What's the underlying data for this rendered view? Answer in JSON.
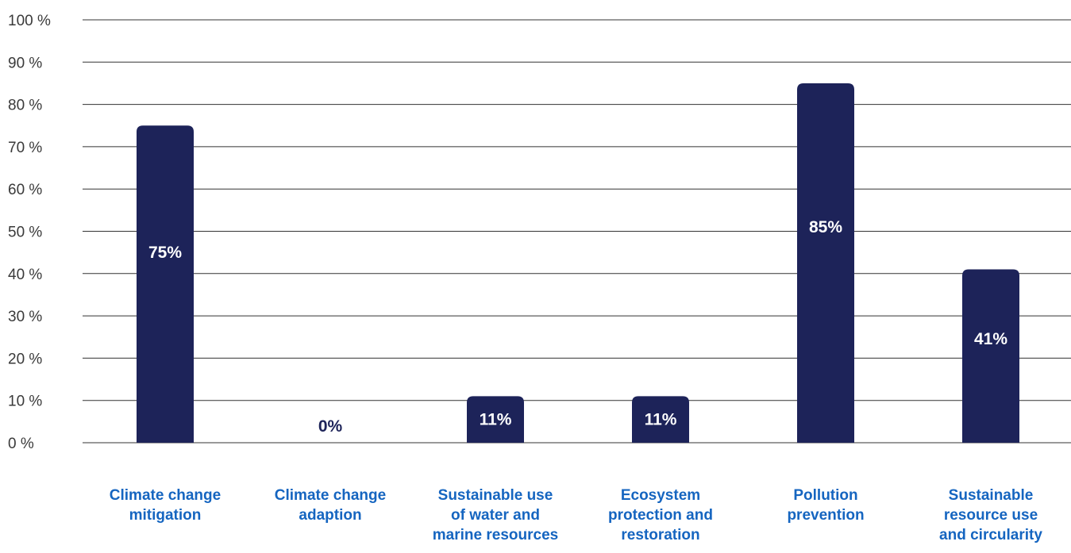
{
  "chart_data": {
    "type": "bar",
    "title": "",
    "xlabel": "",
    "ylabel": "",
    "ylim": [
      0,
      100
    ],
    "y_ticks": [
      0,
      10,
      20,
      30,
      40,
      50,
      60,
      70,
      80,
      90,
      100
    ],
    "y_tick_labels": [
      "0 %",
      "10 %",
      "20 %",
      "30 %",
      "40 %",
      "50 %",
      "60 %",
      "70 %",
      "80 %",
      "90 %",
      "100 %"
    ],
    "grid": true,
    "legend": "none",
    "categories": [
      [
        "Climate change",
        "mitigation"
      ],
      [
        "Climate change",
        "adaption"
      ],
      [
        "Sustainable use",
        "of water and",
        "marine resources"
      ],
      [
        "Ecosystem",
        "protection and",
        "restoration"
      ],
      [
        "Pollution",
        "prevention"
      ],
      [
        "Sustainable",
        "resource use",
        "and circularity"
      ]
    ],
    "values": [
      75,
      0,
      11,
      11,
      85,
      41
    ],
    "data_labels": [
      "75%",
      "0%",
      "11%",
      "11%",
      "85%",
      "41%"
    ]
  },
  "colors": {
    "bar": "#1d2359",
    "category_label": "#1565c0",
    "gridline": "#333333",
    "data_label_inside": "#ffffff",
    "data_label_outside": "#1d2359"
  }
}
